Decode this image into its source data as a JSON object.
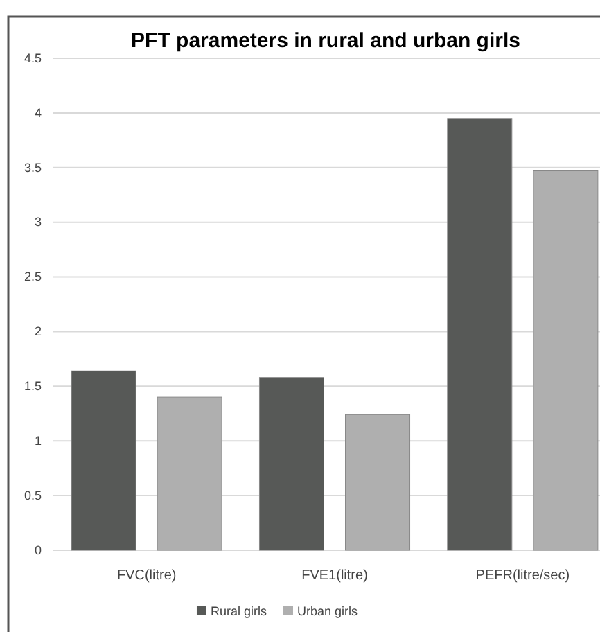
{
  "chart_data": {
    "type": "bar",
    "title": "PFT parameters in rural and urban girls",
    "categories": [
      "FVC(litre)",
      "FVE1(litre)",
      "PEFR(litre/sec)"
    ],
    "series": [
      {
        "name": "Rural girls",
        "color": "#575957",
        "values": [
          1.64,
          1.58,
          3.95
        ]
      },
      {
        "name": "Urban girls",
        "color": "#afafaf",
        "values": [
          1.4,
          1.24,
          3.47
        ]
      }
    ],
    "ylim": [
      0,
      4.5
    ],
    "yticks": [
      0,
      0.5,
      1,
      1.5,
      2,
      2.5,
      3,
      3.5,
      4,
      4.5
    ],
    "grid": "y",
    "legend": "bottom"
  }
}
